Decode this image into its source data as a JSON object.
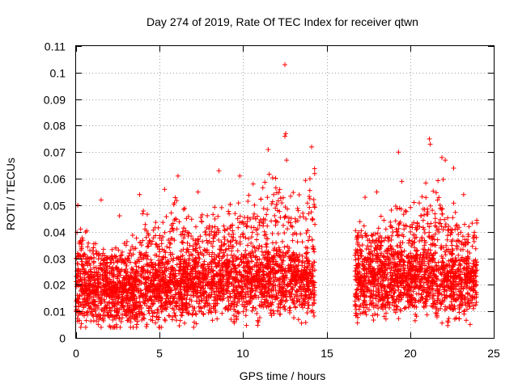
{
  "chart_data": {
    "type": "scatter",
    "title": "Day 274 of 2019, Rate Of TEC Index for receiver qtwn",
    "xlabel": "GPS time / hours",
    "ylabel": "ROTI / TECUs",
    "xlim": [
      0,
      25
    ],
    "ylim": [
      0,
      0.11
    ],
    "grid": true,
    "marker": "+",
    "color": "#ff0000",
    "x_ticks": [
      0,
      5,
      10,
      15,
      20,
      25
    ],
    "x_tick_labels": [
      "0",
      "5",
      "10",
      "15",
      "20",
      "25"
    ],
    "y_ticks": [
      0,
      0.01,
      0.02,
      0.03,
      0.04,
      0.05,
      0.06,
      0.07,
      0.08,
      0.09,
      0.1,
      0.11
    ],
    "y_tick_labels": [
      "0",
      "0.01",
      "0.02",
      "0.03",
      "0.04",
      "0.05",
      "0.06",
      "0.07",
      "0.08",
      "0.09",
      "0.1",
      "0.11"
    ],
    "data_gap_hours": [
      14.3,
      16.7
    ],
    "series": [
      {
        "name": "ROTI",
        "segments": [
          {
            "x_range": [
              0.0,
              14.3
            ],
            "baseline": [
              [
                0,
                0.018
              ],
              [
                1,
                0.017
              ],
              [
                2,
                0.016
              ],
              [
                3,
                0.016
              ],
              [
                4,
                0.018
              ],
              [
                5,
                0.018
              ],
              [
                6,
                0.019
              ],
              [
                7,
                0.019
              ],
              [
                8,
                0.02
              ],
              [
                9,
                0.021
              ],
              [
                10,
                0.02
              ],
              [
                11,
                0.021
              ],
              [
                12,
                0.022
              ],
              [
                13,
                0.021
              ],
              [
                14,
                0.02
              ]
            ],
            "upper_envelope": [
              [
                0,
                0.045
              ],
              [
                1,
                0.038
              ],
              [
                2,
                0.035
              ],
              [
                3,
                0.036
              ],
              [
                4,
                0.05
              ],
              [
                5,
                0.042
              ],
              [
                6,
                0.055
              ],
              [
                7,
                0.045
              ],
              [
                8,
                0.05
              ],
              [
                9,
                0.05
              ],
              [
                10,
                0.052
              ],
              [
                11,
                0.058
              ],
              [
                12,
                0.065
              ],
              [
                13,
                0.055
              ],
              [
                14,
                0.065
              ]
            ]
          },
          {
            "x_range": [
              16.7,
              24.0
            ],
            "baseline": [
              [
                17,
                0.02
              ],
              [
                18,
                0.021
              ],
              [
                19,
                0.022
              ],
              [
                20,
                0.022
              ],
              [
                21,
                0.022
              ],
              [
                22,
                0.021
              ],
              [
                23,
                0.02
              ],
              [
                24,
                0.02
              ]
            ],
            "upper_envelope": [
              [
                17,
                0.045
              ],
              [
                18,
                0.045
              ],
              [
                19,
                0.05
              ],
              [
                20,
                0.05
              ],
              [
                21,
                0.06
              ],
              [
                22,
                0.06
              ],
              [
                23,
                0.045
              ],
              [
                24,
                0.045
              ]
            ]
          }
        ],
        "outliers": [
          [
            12.5,
            0.103
          ],
          [
            12.55,
            0.077
          ],
          [
            12.5,
            0.076
          ],
          [
            11.5,
            0.071
          ],
          [
            14.1,
            0.072
          ],
          [
            21.15,
            0.075
          ],
          [
            21.2,
            0.073
          ],
          [
            19.3,
            0.07
          ],
          [
            21.9,
            0.068
          ],
          [
            12.6,
            0.067
          ],
          [
            8.55,
            0.063
          ],
          [
            9.8,
            0.061
          ],
          [
            6.1,
            0.061
          ],
          [
            14.0,
            0.06
          ],
          [
            23.2,
            0.054
          ],
          [
            0.1,
            0.05
          ],
          [
            1.5,
            0.052
          ],
          [
            2.6,
            0.046
          ],
          [
            3.8,
            0.054
          ],
          [
            5.3,
            0.056
          ],
          [
            7.3,
            0.055
          ],
          [
            10.6,
            0.058
          ],
          [
            17.3,
            0.053
          ],
          [
            18.0,
            0.055
          ],
          [
            22.6,
            0.064
          ],
          [
            22.1,
            0.067
          ],
          [
            19.5,
            0.059
          ]
        ]
      }
    ]
  }
}
